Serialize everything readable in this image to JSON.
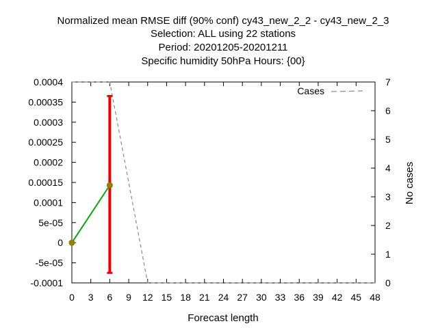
{
  "chart_data": {
    "type": "line",
    "title_lines": [
      "Normalized mean RMSE diff (90% conf) cy43_new_2_2 - cy43_new_2_3",
      "Selection: ALL using    22 stations",
      "Period: 20201205-20201211",
      "Specific humidity 50hPa   Hours: {00}"
    ],
    "xlabel": "Forecast length",
    "ylabel_right": "No cases",
    "xlim": [
      0,
      48
    ],
    "ylim": [
      -0.0001,
      0.0004
    ],
    "y2lim": [
      0,
      7
    ],
    "x_ticks": [
      "0",
      "3",
      "6",
      "9",
      "12",
      "15",
      "18",
      "21",
      "24",
      "27",
      "30",
      "33",
      "36",
      "39",
      "42",
      "45",
      "48"
    ],
    "y_ticks": [
      "0.0004",
      "0.00035",
      "0.0003",
      "0.00025",
      "0.0002",
      "0.00015",
      "0.0001",
      "5e-05",
      "0",
      "-5e-05",
      "-0.0001"
    ],
    "y2_ticks": [
      "7",
      "6",
      "5",
      "4",
      "3",
      "2",
      "1",
      "0"
    ],
    "legend": {
      "label": "Cases",
      "position": "top-right"
    },
    "series": [
      {
        "name": "diff",
        "color": "#00aa00",
        "x": [
          0,
          6
        ],
        "y": [
          0,
          0.000143
        ]
      }
    ],
    "error_bars": [
      {
        "x": 0,
        "low": 0,
        "high": 0
      },
      {
        "x": 6,
        "low": -7.5e-05,
        "high": 0.000365
      }
    ],
    "error_bar_color": "#ee0000",
    "cases": {
      "name": "Cases",
      "color": "#888888",
      "x": [
        0,
        6,
        12,
        18,
        24,
        30,
        36,
        42,
        48
      ],
      "y": [
        7,
        7,
        0,
        0,
        0,
        0,
        0,
        0,
        0
      ]
    }
  }
}
